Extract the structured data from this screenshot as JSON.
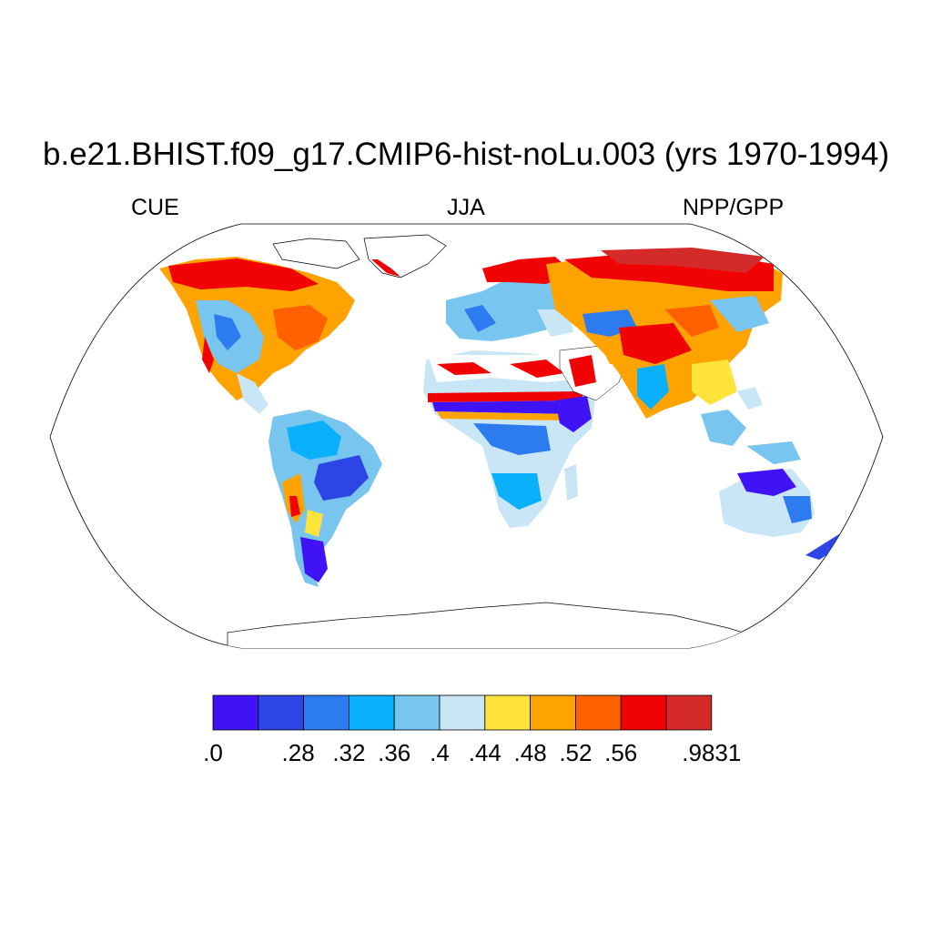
{
  "title": "b.e21.BHIST.f09_g17.CMIP6-hist-noLu.003 (yrs 1970-1994)",
  "left_string": "CUE",
  "center_string": "JJA",
  "right_string": "NPP/GPP",
  "colorbar": {
    "colors": [
      "#3f13f5",
      "#2e45e6",
      "#2d7cef",
      "#0bb0fb",
      "#78c6ef",
      "#c9e6f7",
      "#ffe23a",
      "#ffa301",
      "#ff6100",
      "#f10203",
      "#d52a2a"
    ],
    "tick_labels": [
      ".0",
      ".28",
      ".32",
      ".36",
      ".4",
      ".44",
      ".48",
      ".52",
      ".56",
      ".9831"
    ],
    "tick_values": [
      0.0,
      0.28,
      0.32,
      0.36,
      0.4,
      0.44,
      0.48,
      0.52,
      0.56,
      0.9831
    ]
  },
  "map": {
    "projection": "Robinson",
    "ocean_color": "#ffffff",
    "coastline_color": "#000000"
  }
}
